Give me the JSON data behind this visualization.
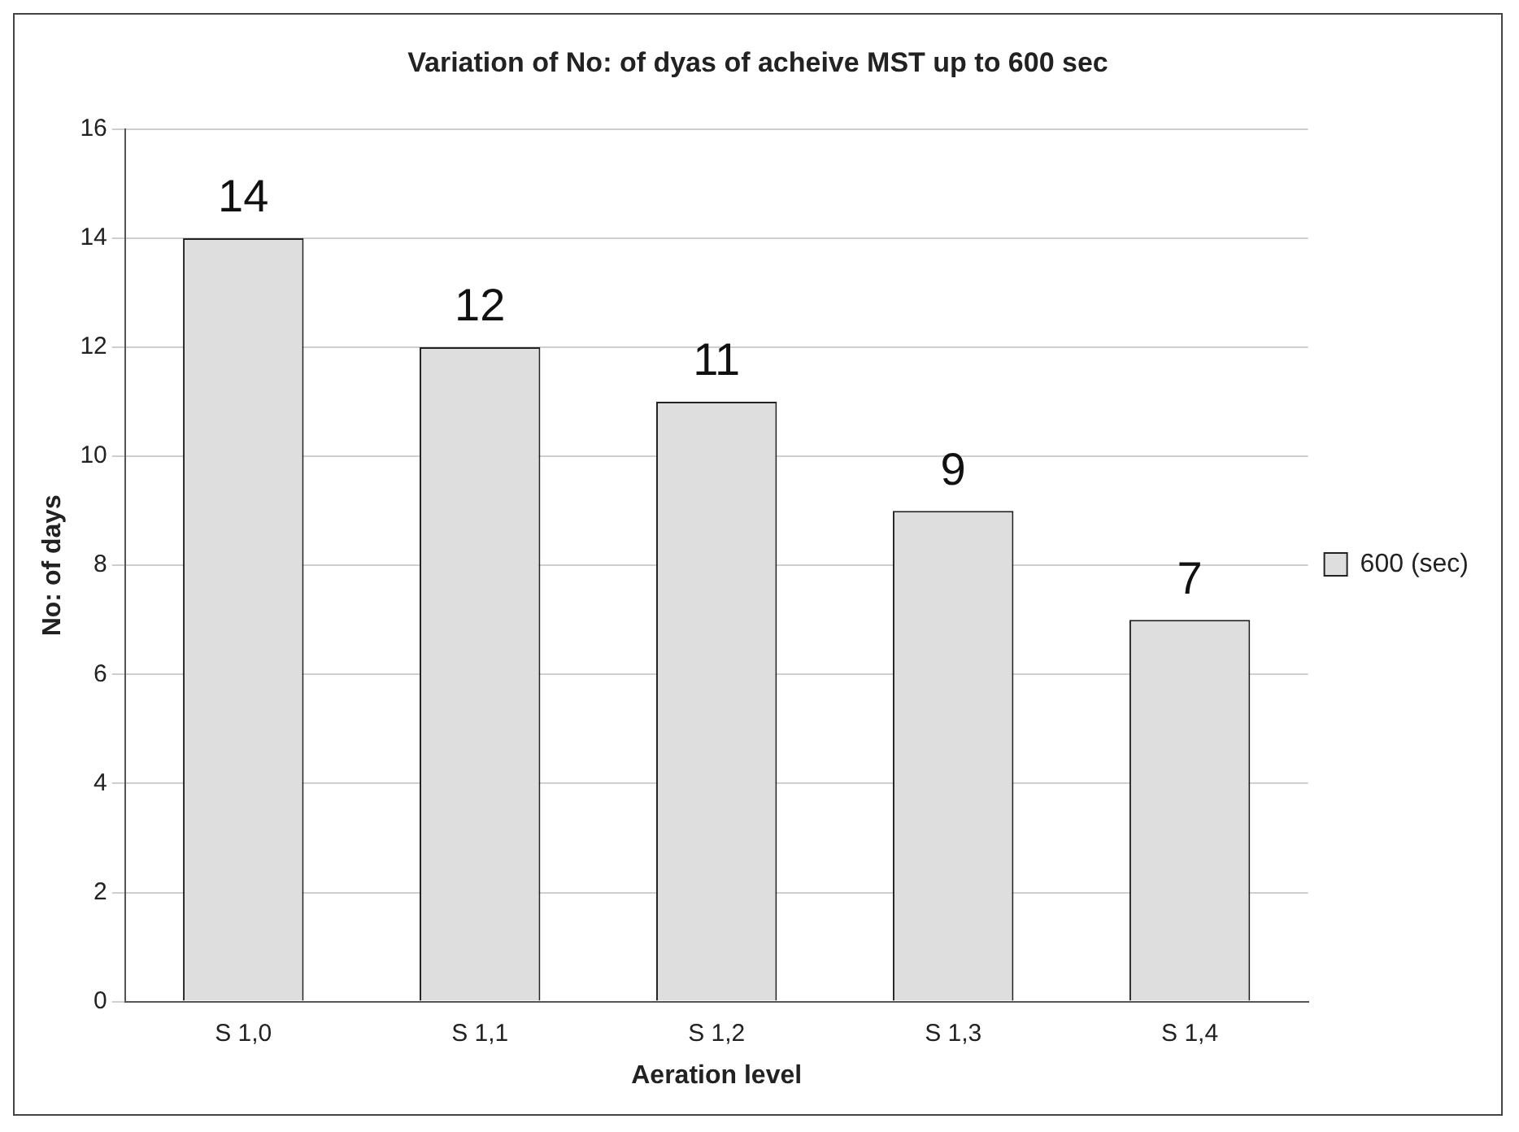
{
  "chart_data": {
    "type": "bar",
    "title": "Variation of No: of dyas of acheive MST up to 600 sec",
    "xlabel": "Aeration level",
    "ylabel": "No: of days",
    "categories": [
      "S 1,0",
      "S 1,1",
      "S 1,2",
      "S 1,3",
      "S 1,4"
    ],
    "series": [
      {
        "name": "600 (sec)",
        "color": "#dedede",
        "values": [
          14,
          12,
          11,
          9,
          7
        ]
      }
    ],
    "ylim": [
      0,
      16
    ],
    "yticks": [
      0,
      2,
      4,
      6,
      8,
      10,
      12,
      14,
      16
    ],
    "grid": "y",
    "legend": "right",
    "data_labels": true
  }
}
